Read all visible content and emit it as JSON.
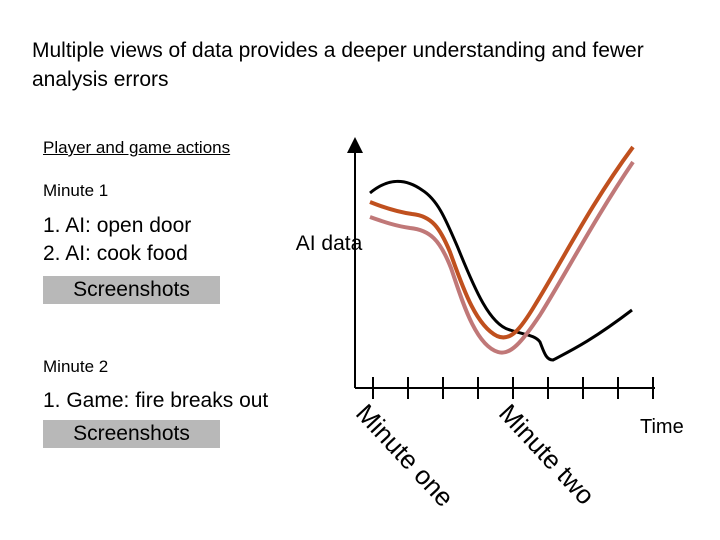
{
  "title": "Multiple views of data provides a deeper understanding and fewer analysis errors",
  "section_label": "Player and game actions",
  "minute1": {
    "heading": "Minute 1",
    "items": [
      "1.  AI: open door",
      "2.  AI: cook food"
    ],
    "button_label": "Screenshots"
  },
  "minute2": {
    "heading": "Minute 2",
    "items": [
      "1.  Game: fire breaks out"
    ],
    "button_label": "Screenshots"
  },
  "ai_data_label": "AI data",
  "time_label": "Time",
  "minute_labels": [
    "Minute one",
    "Minute two"
  ],
  "colors": {
    "button_bg": "#b8b8b8",
    "line_black": "#000000",
    "line_orange": "#c0501e",
    "line_pink": "#c07878"
  }
}
